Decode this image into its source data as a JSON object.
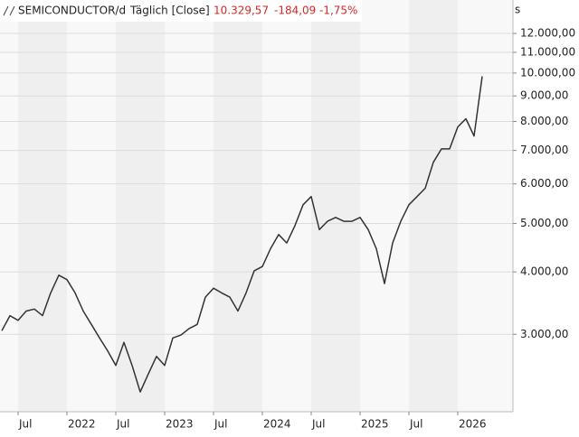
{
  "chart_data": {
    "type": "line",
    "title": "SEMICONDUCTOR/d",
    "subtitle": "Täglich [Close]",
    "last_value": "10.329,57",
    "change": "-184,09",
    "change_percent": "-1,75%",
    "currency": "s",
    "log_scale": true,
    "grid": true,
    "x": [
      "2021-05",
      "2021-06",
      "2021-07",
      "2021-08",
      "2021-09",
      "2021-10",
      "2021-11",
      "2021-12",
      "2022-01",
      "2022-02",
      "2022-03",
      "2022-04",
      "2022-05",
      "2022-06",
      "2022-07",
      "2022-08",
      "2022-09",
      "2022-10",
      "2022-11",
      "2022-12",
      "2023-01",
      "2023-02",
      "2023-03",
      "2023-04",
      "2023-05",
      "2023-06",
      "2023-07",
      "2023-08",
      "2023-09",
      "2023-10",
      "2023-11",
      "2023-12",
      "2024-01",
      "2024-02",
      "2024-03",
      "2024-04",
      "2024-05",
      "2024-06",
      "2024-07",
      "2024-08",
      "2024-09",
      "2024-10",
      "2024-11",
      "2024-12",
      "2025-01",
      "2025-02",
      "2025-03",
      "2025-04",
      "2025-05",
      "2025-06",
      "2025-07",
      "2025-08",
      "2025-09",
      "2025-10",
      "2025-11",
      "2025-12",
      "2026-01",
      "2026-02",
      "2026-03",
      "2026-04"
    ],
    "series": [
      {
        "name": "SEMICONDUCTOR",
        "color": "#333333",
        "values": [
          3050,
          3270,
          3200,
          3340,
          3370,
          3270,
          3630,
          3940,
          3860,
          3630,
          3340,
          3140,
          2950,
          2780,
          2600,
          2890,
          2600,
          2300,
          2500,
          2710,
          2600,
          2950,
          2990,
          3080,
          3140,
          3560,
          3710,
          3630,
          3560,
          3340,
          3630,
          4020,
          4100,
          4450,
          4750,
          4570,
          4950,
          5450,
          5660,
          4860,
          5050,
          5140,
          5050,
          5050,
          5140,
          4860,
          4450,
          3790,
          4570,
          5050,
          5450,
          5660,
          5880,
          6630,
          7050,
          7050,
          7800,
          8100,
          7480,
          9850
        ]
      }
    ],
    "xlim": [
      "2021-05",
      "2026-07"
    ],
    "xticks": [
      {
        "value": "2021-07",
        "label": "Jul"
      },
      {
        "value": "2022-01",
        "label": "2022"
      },
      {
        "value": "2022-07",
        "label": "Jul"
      },
      {
        "value": "2023-01",
        "label": "2023"
      },
      {
        "value": "2023-07",
        "label": "Jul"
      },
      {
        "value": "2024-01",
        "label": "2024"
      },
      {
        "value": "2024-07",
        "label": "Jul"
      },
      {
        "value": "2025-01",
        "label": "2025"
      },
      {
        "value": "2025-07",
        "label": "Jul"
      },
      {
        "value": "2026-01",
        "label": "2026"
      }
    ],
    "ylim": [
      2100,
      14000
    ],
    "yticks": [
      {
        "value": 3000,
        "label": "3.000,00"
      },
      {
        "value": 4000,
        "label": "4.000,00"
      },
      {
        "value": 5000,
        "label": "5.000,00"
      },
      {
        "value": 6000,
        "label": "6.000,00"
      },
      {
        "value": 7000,
        "label": "7.000,00"
      },
      {
        "value": 8000,
        "label": "8.000,00"
      },
      {
        "value": 9000,
        "label": "9.000,00"
      },
      {
        "value": 10000,
        "label": "10.000,00"
      },
      {
        "value": 11000,
        "label": "11.000,00"
      },
      {
        "value": 12000,
        "label": "12.000,00"
      }
    ]
  }
}
